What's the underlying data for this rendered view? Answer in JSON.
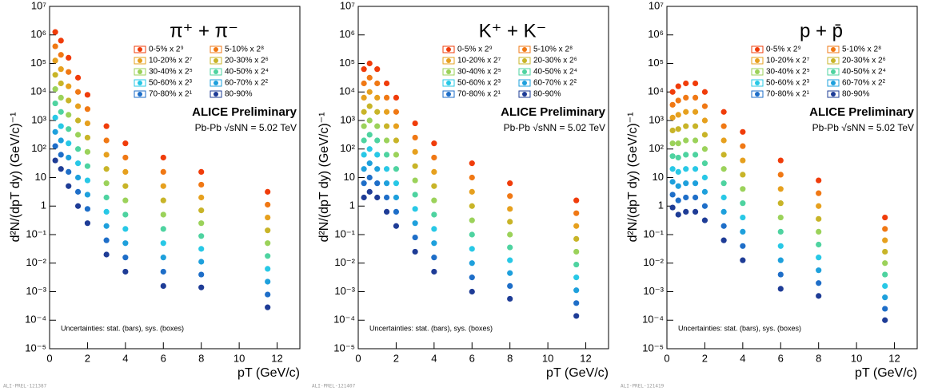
{
  "chart_data": [
    {
      "type": "scatter",
      "title": "π⁺ + π⁻",
      "xlabel": "pT (GeV/c)",
      "ylabel": "d²N/(dpT dy) (GeV/c)⁻¹",
      "annotations": [
        "ALICE Preliminary",
        "Pb-Pb √sNN = 5.02 TeV",
        "Uncertainties: stat. (bars), sys. (boxes)",
        "ALI-PREL-121387"
      ],
      "log_y": true,
      "xlim": [
        0,
        13.2
      ],
      "xticks": [
        0,
        2,
        4,
        6,
        8,
        10,
        12
      ],
      "ylim": [
        1e-05,
        10000000
      ],
      "yticks": [
        {
          "value": 1e-05,
          "label": "10⁻⁵"
        },
        {
          "value": 0.0001,
          "label": "10⁻⁴"
        },
        {
          "value": 0.001,
          "label": "10⁻³"
        },
        {
          "value": 0.01,
          "label": "10⁻²"
        },
        {
          "value": 0.1,
          "label": "10⁻¹"
        },
        1,
        10,
        {
          "value": 100,
          "label": "10²"
        },
        {
          "value": 1000,
          "label": "10³"
        },
        {
          "value": 10000,
          "label": "10⁴"
        },
        {
          "value": 100000,
          "label": "10⁵"
        },
        {
          "value": 1000000,
          "label": "10⁶"
        },
        {
          "value": 10000000,
          "label": "10⁷"
        }
      ],
      "x": [
        0.3,
        0.6,
        1,
        1.5,
        2,
        3,
        4,
        6,
        8,
        11.5
      ],
      "series": [
        {
          "name": "0-5% x 2⁹",
          "color": "#f03c0a",
          "values": [
            1260000,
            631000,
            158000,
            31600,
            7940,
            631,
            158,
            50.1,
            15.8,
            3.16
          ]
        },
        {
          "name": "5-10% x 2⁸",
          "color": "#f07814",
          "values": [
            398000,
            200000,
            50100,
            10000,
            2510,
            200,
            50.1,
            15.8,
            5.62,
            1.12
          ]
        },
        {
          "name": "10-20% x 2⁷",
          "color": "#e6a01e",
          "values": [
            126000,
            63100,
            15800,
            3160,
            794,
            63.1,
            15.8,
            5.01,
            2,
            0.398
          ]
        },
        {
          "name": "20-30% x 2⁶",
          "color": "#c8b428",
          "values": [
            39800,
            20000,
            5010,
            1000,
            251,
            20,
            5.01,
            1.58,
            0.708,
            0.141
          ]
        },
        {
          "name": "30-40% x 2⁵",
          "color": "#9bd25a",
          "values": [
            12600,
            6310,
            1580,
            316,
            79.4,
            6.31,
            1.58,
            0.501,
            0.251,
            0.0501
          ]
        },
        {
          "name": "40-50% x 2⁴",
          "color": "#4ed3a0",
          "values": [
            3980,
            2000,
            501,
            100,
            25.1,
            2,
            0.501,
            0.158,
            0.0891,
            0.0178
          ]
        },
        {
          "name": "50-60% x 2³",
          "color": "#28c8e6",
          "values": [
            1260,
            631,
            158,
            31.6,
            7.94,
            0.631,
            0.158,
            0.0501,
            0.0316,
            0.00631
          ]
        },
        {
          "name": "60-70% x 2²",
          "color": "#1ea0dc",
          "values": [
            398,
            200,
            50.1,
            10,
            2.51,
            0.2,
            0.0501,
            0.0158,
            0.0112,
            0.00224
          ]
        },
        {
          "name": "70-80% x 2¹",
          "color": "#1e6ec8",
          "values": [
            126,
            63.1,
            15.8,
            3.16,
            0.794,
            0.0631,
            0.0158,
            0.00501,
            0.00398,
            0.000794
          ]
        },
        {
          "name": "80-90%",
          "color": "#1e3c96",
          "values": [
            39.8,
            20,
            5.01,
            1,
            0.251,
            0.02,
            0.00501,
            0.00158,
            0.00141,
            0.000282
          ]
        }
      ]
    },
    {
      "type": "scatter",
      "title": "K⁺ + K⁻",
      "xlabel": "pT (GeV/c)",
      "ylabel": "d²N/(dpT dy) (GeV/c)⁻¹",
      "annotations": [
        "ALICE Preliminary",
        "Pb-Pb √sNN = 5.02 TeV",
        "Uncertainties: stat. (bars), sys. (boxes)",
        "ALI-PREL-121407"
      ],
      "log_y": true,
      "xlim": [
        0,
        13.2
      ],
      "xticks": [
        0,
        2,
        4,
        6,
        8,
        10,
        12
      ],
      "ylim": [
        1e-05,
        10000000
      ],
      "yticks": [
        {
          "value": 1e-05,
          "label": "10⁻⁵"
        },
        {
          "value": 0.0001,
          "label": "10⁻⁴"
        },
        {
          "value": 0.001,
          "label": "10⁻³"
        },
        {
          "value": 0.01,
          "label": "10⁻²"
        },
        {
          "value": 0.1,
          "label": "10⁻¹"
        },
        1,
        10,
        {
          "value": 100,
          "label": "10²"
        },
        {
          "value": 1000,
          "label": "10³"
        },
        {
          "value": 10000,
          "label": "10⁴"
        },
        {
          "value": 100000,
          "label": "10⁵"
        },
        {
          "value": 1000000,
          "label": "10⁶"
        },
        {
          "value": 10000000,
          "label": "10⁷"
        }
      ],
      "x": [
        0.3,
        0.6,
        1,
        1.5,
        2,
        3,
        4,
        6,
        8,
        11.5
      ],
      "series": [
        {
          "name": "0-5% x 2⁹",
          "color": "#f03c0a",
          "values": [
            63100,
            100000,
            63100,
            20000,
            6310,
            794,
            158,
            31.6,
            6.31,
            1.58
          ]
        },
        {
          "name": "5-10% x 2⁸",
          "color": "#f07814",
          "values": [
            20000,
            31600,
            20000,
            6310,
            2000,
            251,
            50.1,
            10,
            2.24,
            0.562
          ]
        },
        {
          "name": "10-20% x 2⁷",
          "color": "#e6a01e",
          "values": [
            6310,
            10000,
            6310,
            2000,
            631,
            79.4,
            15.8,
            3.16,
            0.794,
            0.2
          ]
        },
        {
          "name": "20-30% x 2⁶",
          "color": "#c8b428",
          "values": [
            2000,
            3160,
            2000,
            631,
            200,
            25.1,
            5.01,
            1,
            0.282,
            0.0708
          ]
        },
        {
          "name": "30-40% x 2⁵",
          "color": "#9bd25a",
          "values": [
            631,
            1000,
            631,
            200,
            63.1,
            7.94,
            1.58,
            0.316,
            0.1,
            0.0251
          ]
        },
        {
          "name": "40-50% x 2⁴",
          "color": "#4ed3a0",
          "values": [
            200,
            316,
            200,
            63.1,
            20,
            2.51,
            0.501,
            0.1,
            0.0355,
            0.00891
          ]
        },
        {
          "name": "50-60% x 2³",
          "color": "#28c8e6",
          "values": [
            63.1,
            100,
            63.1,
            20,
            6.31,
            0.794,
            0.158,
            0.0316,
            0.0126,
            0.00316
          ]
        },
        {
          "name": "60-70% x 2²",
          "color": "#1ea0dc",
          "values": [
            20,
            31.6,
            20,
            6.31,
            2,
            0.251,
            0.0501,
            0.01,
            0.00447,
            0.00112
          ]
        },
        {
          "name": "70-80% x 2¹",
          "color": "#1e6ec8",
          "values": [
            6.31,
            10,
            6.31,
            2,
            0.631,
            0.0794,
            0.0158,
            0.00316,
            0.00158,
            0.000398
          ]
        },
        {
          "name": "80-90%",
          "color": "#1e3c96",
          "values": [
            2,
            3.16,
            2,
            0.631,
            0.2,
            0.0251,
            0.00501,
            0.001,
            0.000562,
            0.000141
          ]
        }
      ]
    },
    {
      "type": "scatter",
      "title": "p + p̄",
      "xlabel": "pT (GeV/c)",
      "ylabel": "d²N/(dpT dy) (GeV/c)⁻¹",
      "annotations": [
        "ALICE Preliminary",
        "Pb-Pb √sNN = 5.02 TeV",
        "Uncertainties: stat. (bars), sys. (boxes)",
        "ALI-PREL-121419"
      ],
      "log_y": true,
      "xlim": [
        0,
        13.2
      ],
      "xticks": [
        0,
        2,
        4,
        6,
        8,
        10,
        12
      ],
      "ylim": [
        1e-05,
        10000000
      ],
      "yticks": [
        {
          "value": 1e-05,
          "label": "10⁻⁵"
        },
        {
          "value": 0.0001,
          "label": "10⁻⁴"
        },
        {
          "value": 0.001,
          "label": "10⁻³"
        },
        {
          "value": 0.01,
          "label": "10⁻²"
        },
        {
          "value": 0.1,
          "label": "10⁻¹"
        },
        1,
        10,
        {
          "value": 100,
          "label": "10²"
        },
        {
          "value": 1000,
          "label": "10³"
        },
        {
          "value": 10000,
          "label": "10⁴"
        },
        {
          "value": 100000,
          "label": "10⁵"
        },
        {
          "value": 1000000,
          "label": "10⁶"
        },
        {
          "value": 10000000,
          "label": "10⁷"
        }
      ],
      "x": [
        0.3,
        0.6,
        1,
        1.5,
        2,
        3,
        4,
        6,
        8,
        11.5
      ],
      "series": [
        {
          "name": "0-5% x 2⁹",
          "color": "#f03c0a",
          "values": [
            10000,
            15800,
            20000,
            20000,
            10000,
            2000,
            398,
            39.8,
            7.94,
            0.398
          ]
        },
        {
          "name": "5-10% x 2⁸",
          "color": "#f07814",
          "values": [
            3550,
            5010,
            6310,
            6310,
            3160,
            631,
            126,
            12.6,
            2.82,
            0.158
          ]
        },
        {
          "name": "10-20% x 2⁷",
          "color": "#e6a01e",
          "values": [
            1260,
            1580,
            2000,
            2000,
            1000,
            200,
            39.8,
            3.98,
            1,
            0.0631
          ]
        },
        {
          "name": "20-30% x 2⁶",
          "color": "#c8b428",
          "values": [
            447,
            501,
            631,
            631,
            316,
            63.1,
            12.6,
            1.26,
            0.355,
            0.0251
          ]
        },
        {
          "name": "30-40% x 2⁵",
          "color": "#9bd25a",
          "values": [
            158,
            158,
            200,
            200,
            100,
            20,
            3.98,
            0.398,
            0.126,
            0.01
          ]
        },
        {
          "name": "40-50% x 2⁴",
          "color": "#4ed3a0",
          "values": [
            56.2,
            50.1,
            63.1,
            63.1,
            31.6,
            6.31,
            1.26,
            0.126,
            0.0447,
            0.00398
          ]
        },
        {
          "name": "50-60% x 2³",
          "color": "#28c8e6",
          "values": [
            20,
            15.8,
            20,
            20,
            10,
            2,
            0.398,
            0.0398,
            0.0158,
            0.00158
          ]
        },
        {
          "name": "60-70% x 2²",
          "color": "#1ea0dc",
          "values": [
            7.08,
            5.01,
            6.31,
            6.31,
            3.16,
            0.631,
            0.126,
            0.0126,
            0.00562,
            0.000631
          ]
        },
        {
          "name": "70-80% x 2¹",
          "color": "#1e6ec8",
          "values": [
            2.51,
            1.58,
            2,
            2,
            1,
            0.2,
            0.0398,
            0.00398,
            0.002,
            0.000251
          ]
        },
        {
          "name": "80-90%",
          "color": "#1e3c96",
          "values": [
            0.891,
            0.501,
            0.631,
            0.631,
            0.316,
            0.0631,
            0.0126,
            0.00126,
            0.000708,
            0.0001
          ]
        }
      ]
    }
  ]
}
